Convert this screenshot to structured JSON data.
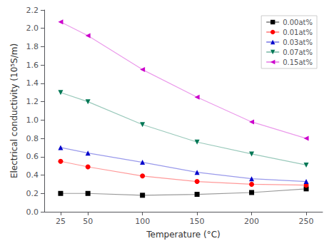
{
  "chart_data": {
    "type": "line",
    "xlabel": "Temperature (°C)",
    "ylabel": "Electrical conductivity (10⁵S/m)",
    "xlim": [
      10,
      265
    ],
    "ylim": [
      0.0,
      2.2
    ],
    "xticks": [
      25,
      50,
      100,
      150,
      200,
      250
    ],
    "yticks": [
      {
        "value": 0.0,
        "label": "0.0"
      },
      0.2,
      0.4,
      0.6,
      0.8,
      {
        "value": 1.0,
        "label": "1.0"
      },
      1.2,
      1.4,
      1.6,
      1.8,
      {
        "value": 2.0,
        "label": "2.0"
      },
      2.2
    ],
    "grid": false,
    "legend": "upper right",
    "series": [
      {
        "name": "0.00at%",
        "x": [
          25,
          50,
          100,
          150,
          200,
          250
        ],
        "values": [
          0.2,
          0.2,
          0.18,
          0.19,
          0.21,
          0.25
        ],
        "color": "#000000",
        "marker": "square"
      },
      {
        "name": "0.01at%",
        "x": [
          25,
          50,
          100,
          150,
          200,
          250
        ],
        "values": [
          0.55,
          0.49,
          0.39,
          0.33,
          0.3,
          0.29
        ],
        "color": "#ff0000",
        "marker": "circle"
      },
      {
        "name": "0.03at%",
        "x": [
          25,
          50,
          100,
          150,
          200,
          250
        ],
        "values": [
          0.7,
          0.64,
          0.54,
          0.43,
          0.36,
          0.33
        ],
        "color": "#0000cc",
        "marker": "triangle-up"
      },
      {
        "name": "0.07at%",
        "x": [
          25,
          50,
          100,
          150,
          200,
          250
        ],
        "values": [
          1.3,
          1.2,
          0.95,
          0.76,
          0.63,
          0.51
        ],
        "color": "#007755",
        "marker": "triangle-down"
      },
      {
        "name": "0.15at%",
        "x": [
          25,
          50,
          100,
          150,
          200,
          250
        ],
        "values": [
          2.07,
          1.92,
          1.55,
          1.25,
          0.98,
          0.8
        ],
        "color": "#cc00cc",
        "marker": "triangle-left"
      }
    ]
  }
}
